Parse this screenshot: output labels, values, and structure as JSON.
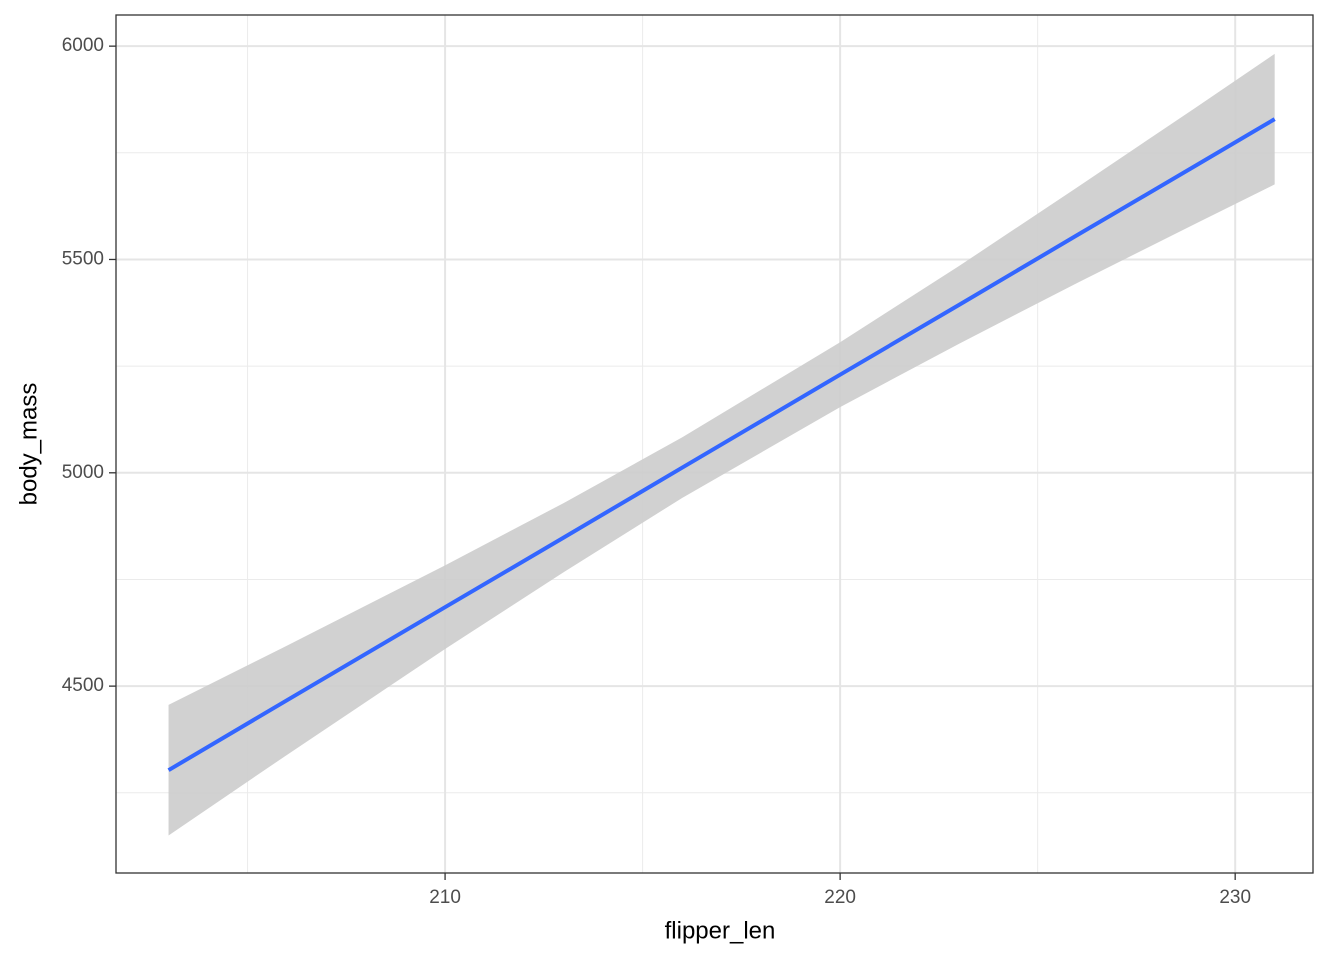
{
  "chart_data": {
    "type": "line",
    "xlabel": "flipper_len",
    "ylabel": "body_mass",
    "x": [
      203,
      206,
      210,
      213,
      216,
      220,
      223,
      226,
      229,
      231
    ],
    "values": [
      4303,
      4467,
      4685,
      4848,
      5012,
      5230,
      5393,
      5557,
      5720,
      5829
    ],
    "band": {
      "lower": [
        4150,
        4339,
        4587,
        4767,
        4941,
        5154,
        5302,
        5445,
        5584,
        5676
      ],
      "upper": [
        4456,
        4595,
        4783,
        4929,
        5083,
        5306,
        5484,
        5669,
        5856,
        5982
      ]
    },
    "color": "#3366ff",
    "band_color": "#cccccc",
    "xlim": [
      201.67,
      231.97
    ],
    "xticks": [
      210,
      220,
      230
    ],
    "xminorticks": [
      205,
      215,
      225
    ],
    "ylim": [
      4062,
      6073
    ],
    "yticks": [
      4500,
      5000,
      5500,
      6000
    ],
    "yminorticks": [
      4250,
      4750,
      5250,
      5750
    ],
    "grid": true
  }
}
